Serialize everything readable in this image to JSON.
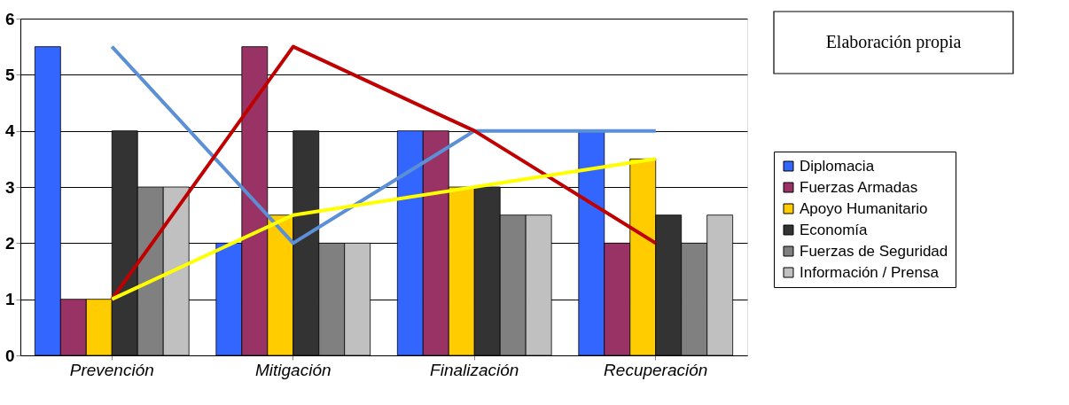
{
  "chart_data": {
    "type": "bar",
    "categories": [
      "Prevención",
      "Mitigación",
      "Finalización",
      "Recuperación"
    ],
    "series": [
      {
        "name": "Diplomacia",
        "color": "#3366ff",
        "values": [
          5.5,
          2,
          4,
          4
        ]
      },
      {
        "name": "Fuerzas Armadas",
        "color": "#993366",
        "values": [
          1,
          5.5,
          4,
          2
        ]
      },
      {
        "name": "Apoyo Humanitario",
        "color": "#ffcc00",
        "values": [
          1,
          2.5,
          3,
          3.5
        ]
      },
      {
        "name": "Economía",
        "color": "#333333",
        "values": [
          4,
          4,
          3,
          2.5
        ]
      },
      {
        "name": "Fuerzas de Seguridad",
        "color": "#808080",
        "values": [
          3,
          2,
          2.5,
          2
        ]
      },
      {
        "name": "Información / Prensa",
        "color": "#c0c0c0",
        "values": [
          3,
          2,
          2.5,
          2.5
        ]
      },
      {
        "type": "line",
        "color": "#5b8fd6",
        "values": [
          5.5,
          2,
          4,
          4
        ]
      },
      {
        "type": "line",
        "color": "#c00000",
        "values": [
          1,
          5.5,
          4,
          2
        ]
      },
      {
        "type": "line",
        "color": "#ffff00",
        "values": [
          1,
          2.5,
          3,
          3.5
        ]
      }
    ],
    "ylim": [
      0,
      6
    ],
    "yticks": [
      0,
      1,
      2,
      3,
      4,
      5,
      6
    ],
    "grid": "y",
    "legend": "right",
    "annotations": [
      "Elaboración propia"
    ]
  }
}
